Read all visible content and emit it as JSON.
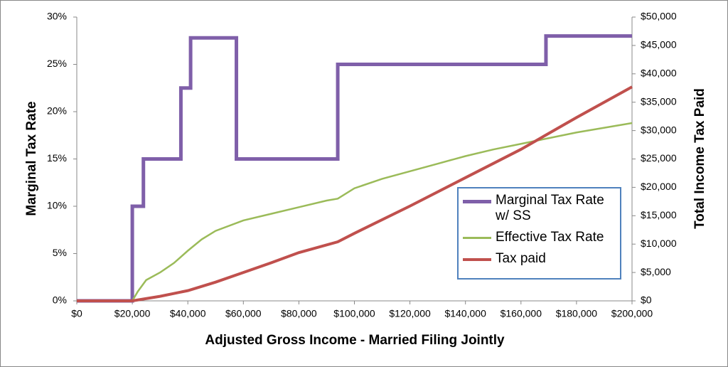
{
  "chart_data": {
    "type": "line",
    "xlabel": "Adjusted Gross Income - Married Filing Jointly",
    "ylabel": "Marginal Tax Rate",
    "y2label": "Total Income Tax Paid",
    "xlim": [
      0,
      200000
    ],
    "xticks": [
      {
        "value": 0,
        "label": "$0"
      },
      {
        "value": 20000,
        "label": "$20,000"
      },
      {
        "value": 40000,
        "label": "$40,000"
      },
      {
        "value": 60000,
        "label": "$60,000"
      },
      {
        "value": 80000,
        "label": "$80,000"
      },
      {
        "value": 100000,
        "label": "$100,000"
      },
      {
        "value": 120000,
        "label": "$120,000"
      },
      {
        "value": 140000,
        "label": "$140,000"
      },
      {
        "value": 160000,
        "label": "$160,000"
      },
      {
        "value": 180000,
        "label": "$180,000"
      },
      {
        "value": 200000,
        "label": "$200,000"
      }
    ],
    "ylim": [
      0,
      30
    ],
    "yticks": [
      {
        "value": 0,
        "label": "0%"
      },
      {
        "value": 5,
        "label": "5%"
      },
      {
        "value": 10,
        "label": "10%"
      },
      {
        "value": 15,
        "label": "15%"
      },
      {
        "value": 20,
        "label": "20%"
      },
      {
        "value": 25,
        "label": "25%"
      },
      {
        "value": 30,
        "label": "30%"
      }
    ],
    "y2lim": [
      0,
      50000
    ],
    "y2ticks": [
      {
        "value": 0,
        "label": "$0"
      },
      {
        "value": 5000,
        "label": "$5,000"
      },
      {
        "value": 10000,
        "label": "$10,000"
      },
      {
        "value": 15000,
        "label": "$15,000"
      },
      {
        "value": 20000,
        "label": "$20,000"
      },
      {
        "value": 25000,
        "label": "$25,000"
      },
      {
        "value": 30000,
        "label": "$30,000"
      },
      {
        "value": 35000,
        "label": "$35,000"
      },
      {
        "value": 40000,
        "label": "$40,000"
      },
      {
        "value": 45000,
        "label": "$45,000"
      },
      {
        "value": 50000,
        "label": "$50,000"
      }
    ],
    "legend": "lower right",
    "grid": false,
    "series": [
      {
        "name": "Marginal Tax Rate w/ SS",
        "color": "#7f5fa9",
        "width": 5,
        "x": [
          0,
          20000,
          20000,
          24000,
          24000,
          37500,
          37500,
          41000,
          41000,
          57500,
          57500,
          94000,
          94000,
          169000,
          169000,
          200000
        ],
        "values": [
          0,
          0,
          10,
          10,
          15,
          15,
          22.5,
          22.5,
          27.8,
          27.8,
          15,
          15,
          25,
          25,
          28,
          28
        ]
      },
      {
        "name": "Effective Tax Rate",
        "color": "#9bbb59",
        "width": 2.5,
        "x": [
          0,
          20000,
          22000,
          25000,
          30000,
          35000,
          40000,
          45000,
          50000,
          60000,
          70000,
          80000,
          90000,
          94000,
          100000,
          110000,
          120000,
          130000,
          140000,
          150000,
          160000,
          170000,
          180000,
          190000,
          200000
        ],
        "values": [
          0,
          0,
          1,
          2.2,
          3.0,
          4.0,
          5.3,
          6.5,
          7.4,
          8.5,
          9.2,
          9.9,
          10.6,
          10.8,
          11.9,
          12.9,
          13.7,
          14.5,
          15.3,
          16.0,
          16.6,
          17.2,
          17.8,
          18.3,
          18.8
        ]
      },
      {
        "name": "Tax paid",
        "color": "#c0504d",
        "width": 4,
        "axis": "y2",
        "x": [
          0,
          20000,
          30000,
          40000,
          50000,
          60000,
          70000,
          80000,
          94000,
          100000,
          120000,
          140000,
          160000,
          180000,
          200000
        ],
        "values": [
          0,
          0,
          800,
          1800,
          3300,
          5000,
          6700,
          8500,
          10400,
          11900,
          16700,
          21700,
          26700,
          32300,
          37700
        ]
      }
    ]
  }
}
